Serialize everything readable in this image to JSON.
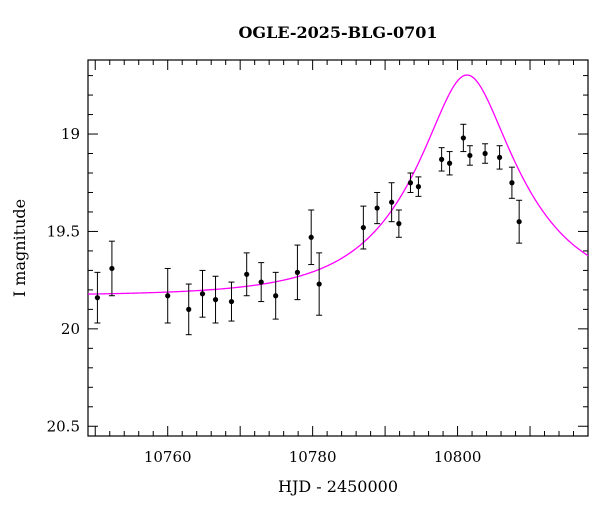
{
  "chart_data": {
    "type": "scatter",
    "title": "OGLE-2025-BLG-0701",
    "xlabel": "HJD - 2450000",
    "ylabel": "I magnitude",
    "xlim": [
      10749,
      10818
    ],
    "ylim": [
      20.55,
      18.62
    ],
    "y_inverted": true,
    "x_ticks": [
      10760,
      10780,
      10800
    ],
    "x_tick_labels": [
      "10760",
      "10780",
      "10800"
    ],
    "y_ticks": [
      19,
      19.5,
      20,
      20.5
    ],
    "y_tick_labels": [
      "19",
      "19.5",
      "20",
      "20.5"
    ],
    "grid": false,
    "colors": {
      "data": "#000000",
      "model": "#ff00ff",
      "axes": "#000000"
    },
    "series": [
      {
        "type": "errorbar",
        "x": [
          10750.3,
          10752.3,
          10760.0,
          10762.9,
          10764.8,
          10766.6,
          10768.8,
          10770.9,
          10772.9,
          10774.9,
          10777.9,
          10779.8,
          10780.9,
          10787.0,
          10788.9,
          10790.9,
          10791.9,
          10793.5,
          10794.6,
          10797.8,
          10798.9,
          10800.8,
          10801.7,
          10803.8,
          10805.8,
          10807.5,
          10808.5
        ],
        "y": [
          19.84,
          19.69,
          19.83,
          19.9,
          19.82,
          19.85,
          19.86,
          19.72,
          19.76,
          19.83,
          19.71,
          19.53,
          19.77,
          19.48,
          19.38,
          19.35,
          19.46,
          19.25,
          19.27,
          19.13,
          19.15,
          19.02,
          19.11,
          19.1,
          19.12,
          19.25,
          19.45
        ],
        "yerr": [
          0.13,
          0.14,
          0.14,
          0.13,
          0.12,
          0.12,
          0.1,
          0.11,
          0.1,
          0.12,
          0.14,
          0.14,
          0.16,
          0.11,
          0.08,
          0.1,
          0.07,
          0.05,
          0.05,
          0.06,
          0.06,
          0.07,
          0.05,
          0.05,
          0.06,
          0.08,
          0.11
        ]
      },
      {
        "type": "line",
        "model": "point-lens (Paczynski) fit",
        "t0": 10801.3,
        "tE": 14.0,
        "u0": 0.37,
        "I_base": 19.83
      }
    ]
  }
}
